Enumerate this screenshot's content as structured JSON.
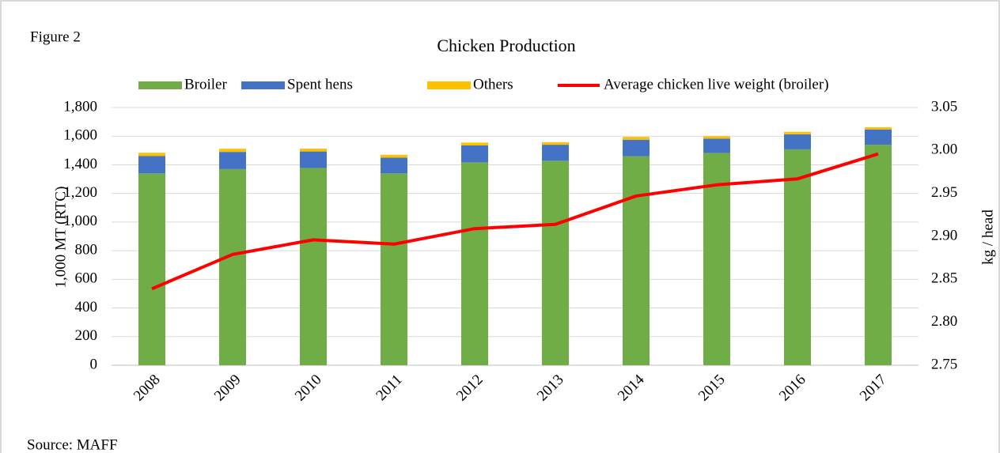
{
  "chart_data": {
    "type": "bar",
    "label": "Figure 2",
    "title": "Chicken Production",
    "source": "Source: MAFF",
    "y_label": "1,000 MT  (RTC)",
    "y2_label": "kg / head",
    "categories": [
      "2008",
      "2009",
      "2010",
      "2011",
      "2012",
      "2013",
      "2014",
      "2015",
      "2016",
      "2017"
    ],
    "series": [
      {
        "name": "Broiler",
        "type": "bar",
        "color": "#70ad47",
        "values": [
          1340,
          1370,
          1378,
          1340,
          1417,
          1428,
          1460,
          1483,
          1508,
          1540
        ]
      },
      {
        "name": "Spent hens",
        "type": "bar",
        "color": "#4472c4",
        "values": [
          122,
          120,
          115,
          110,
          118,
          112,
          115,
          100,
          105,
          107
        ]
      },
      {
        "name": "Others",
        "type": "bar",
        "color": "#ffc000",
        "values": [
          22,
          22,
          20,
          20,
          20,
          18,
          20,
          17,
          17,
          15
        ]
      },
      {
        "name": "Average chicken live weight (broiler)",
        "type": "line",
        "axis": "y2",
        "color": "#ff0000",
        "values": [
          2.839,
          2.879,
          2.896,
          2.891,
          2.909,
          2.914,
          2.947,
          2.96,
          2.967,
          2.996
        ]
      }
    ],
    "ylim": [
      0,
      1800
    ],
    "yticks": [
      0,
      200,
      400,
      600,
      800,
      {
        "value": 1000,
        "label": "1,000"
      },
      {
        "value": 1200,
        "label": "1,200"
      },
      {
        "value": 1400,
        "label": "1,400"
      },
      {
        "value": 1600,
        "label": "1,600"
      },
      {
        "value": 1800,
        "label": "1,800"
      }
    ],
    "y2lim": [
      2.75,
      3.05
    ],
    "y2ticks": [
      2.75,
      {
        "value": 2.8,
        "label": "2.80"
      },
      2.85,
      {
        "value": 2.9,
        "label": "2.90"
      },
      2.95,
      {
        "value": 3,
        "label": "3.00"
      },
      3.05
    ],
    "grid": true,
    "legend": "top"
  }
}
